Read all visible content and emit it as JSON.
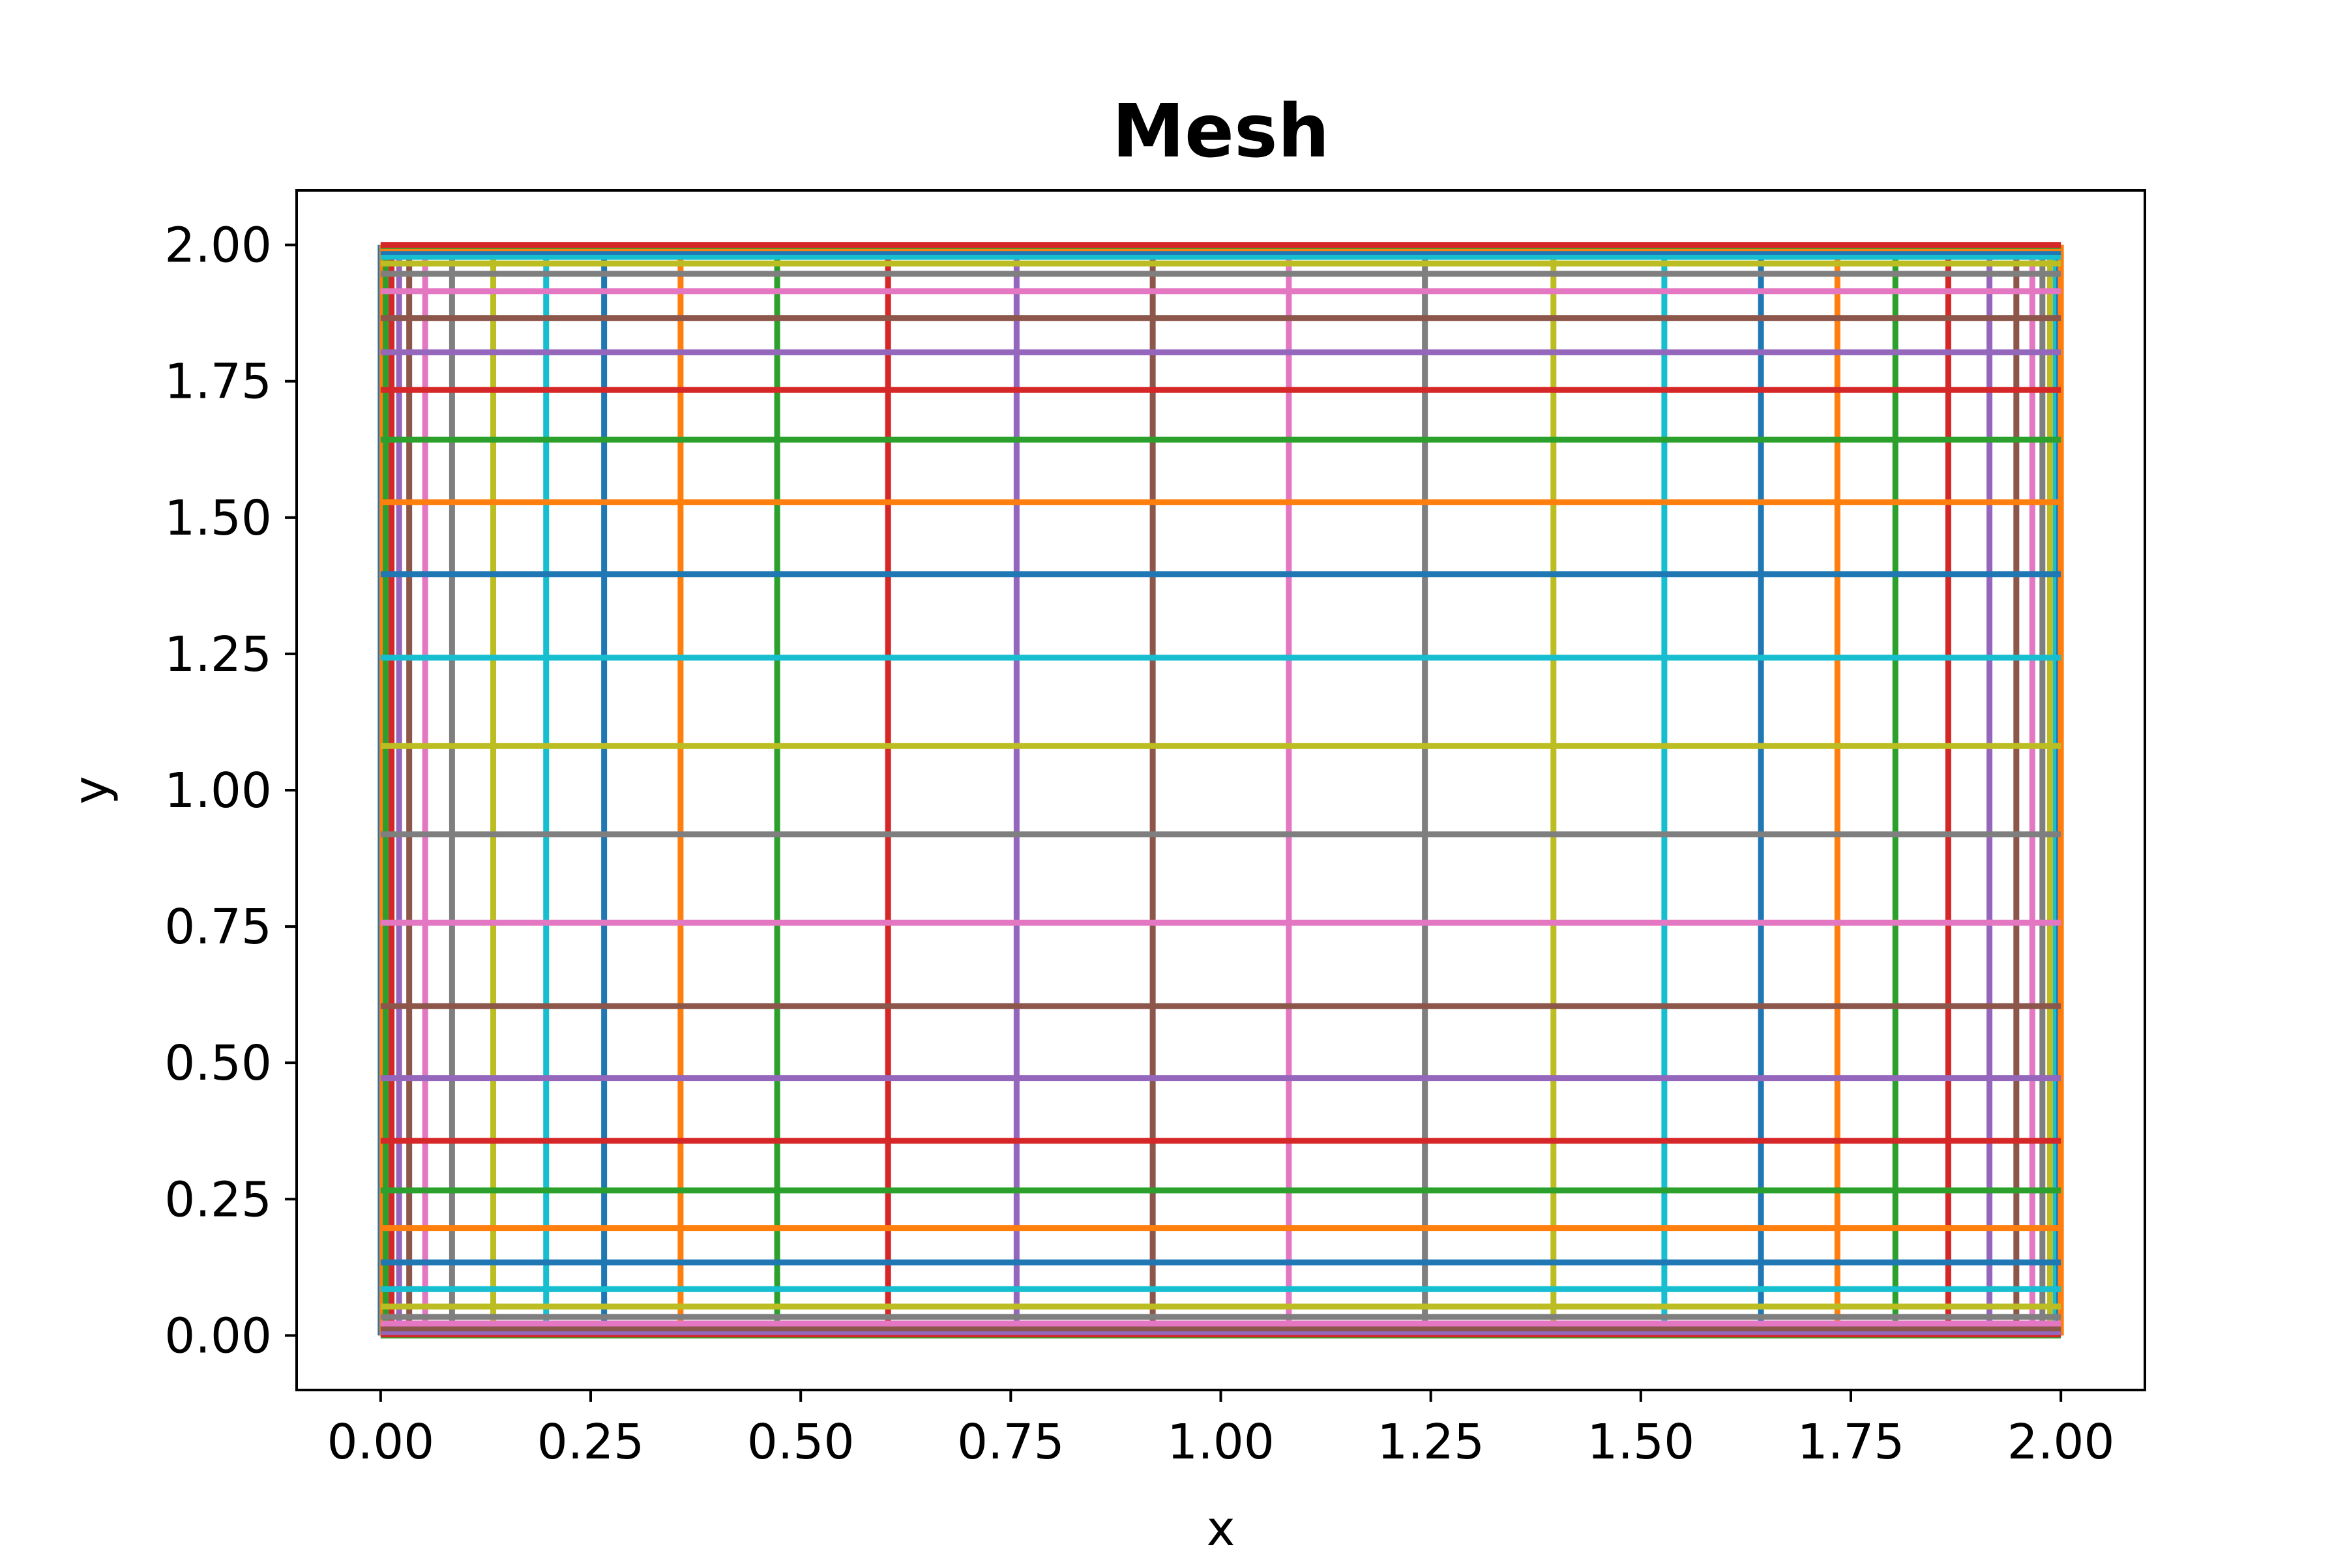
{
  "chart_data": {
    "type": "line",
    "title": "Mesh",
    "xlabel": "x",
    "ylabel": "y",
    "xlim": [
      -0.1,
      2.1
    ],
    "ylim": [
      -0.1,
      2.1
    ],
    "x_ticks": [
      "0.00",
      "0.25",
      "0.50",
      "0.75",
      "1.00",
      "1.25",
      "1.50",
      "1.75",
      "2.00"
    ],
    "y_ticks": [
      "0.00",
      "0.25",
      "0.50",
      "0.75",
      "1.00",
      "1.25",
      "1.50",
      "1.75",
      "2.00"
    ],
    "grid": false,
    "legend": "none",
    "palette": [
      "#1f77b4",
      "#ff7f0e",
      "#2ca02c",
      "#d62728",
      "#9467bd",
      "#8c564b",
      "#e377c2",
      "#7f7f7f",
      "#bcbd22",
      "#17becf"
    ],
    "mesh_coordinates": [
      0.0,
      0.002,
      0.006,
      0.013,
      0.022,
      0.034,
      0.053,
      0.085,
      0.134,
      0.197,
      0.266,
      0.357,
      0.472,
      0.604,
      0.757,
      0.919,
      1.081,
      1.243,
      1.396,
      1.528,
      1.643,
      1.734,
      1.803,
      1.866,
      1.915,
      1.947,
      1.966,
      1.978,
      1.987,
      1.994,
      1.998,
      2.0
    ],
    "line_span": [
      0.0,
      2.0
    ]
  }
}
